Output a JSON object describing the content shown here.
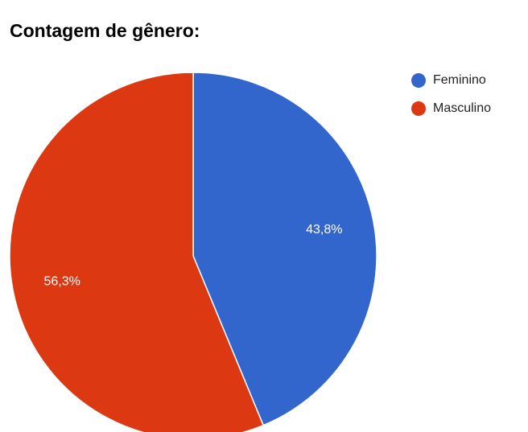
{
  "chart_data": {
    "type": "pie",
    "title": "Contagem de gênero:",
    "categories": [
      "Feminino",
      "Masculino"
    ],
    "values": [
      43.8,
      56.3
    ],
    "value_labels": [
      "43,8%",
      "56,3%"
    ],
    "colors": [
      "#3366cc",
      "#dc3912"
    ],
    "legend": "right"
  }
}
